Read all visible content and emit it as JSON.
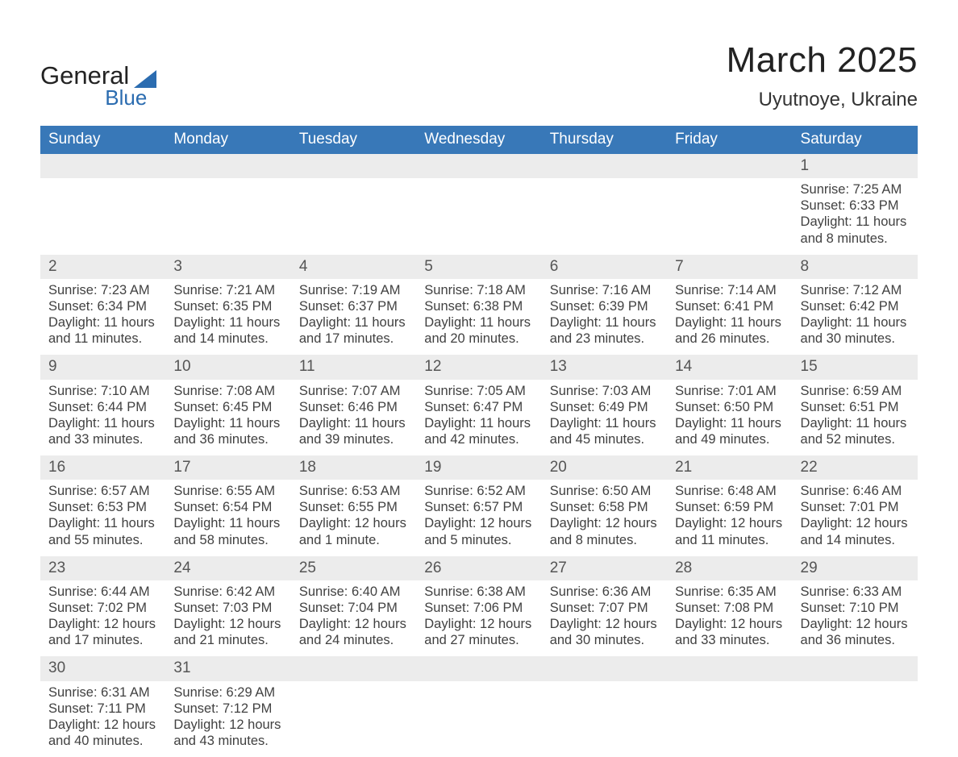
{
  "brand": {
    "line1": "General",
    "line2": "Blue"
  },
  "header": {
    "title": "March 2025",
    "location": "Uyutnoye, Ukraine"
  },
  "colors": {
    "header_bg": "#3878b8",
    "header_text": "#ffffff",
    "row_divider": "#3878b8",
    "daynum_bg": "#ececec",
    "body_text": "#414141",
    "page_bg": "#ffffff",
    "logo_accent": "#2b6cb0"
  },
  "columns": [
    "Sunday",
    "Monday",
    "Tuesday",
    "Wednesday",
    "Thursday",
    "Friday",
    "Saturday"
  ],
  "weeks": [
    [
      null,
      null,
      null,
      null,
      null,
      null,
      {
        "n": "1",
        "sunrise": "Sunrise: 7:25 AM",
        "sunset": "Sunset: 6:33 PM",
        "day1": "Daylight: 11 hours",
        "day2": "and 8 minutes."
      }
    ],
    [
      {
        "n": "2",
        "sunrise": "Sunrise: 7:23 AM",
        "sunset": "Sunset: 6:34 PM",
        "day1": "Daylight: 11 hours",
        "day2": "and 11 minutes."
      },
      {
        "n": "3",
        "sunrise": "Sunrise: 7:21 AM",
        "sunset": "Sunset: 6:35 PM",
        "day1": "Daylight: 11 hours",
        "day2": "and 14 minutes."
      },
      {
        "n": "4",
        "sunrise": "Sunrise: 7:19 AM",
        "sunset": "Sunset: 6:37 PM",
        "day1": "Daylight: 11 hours",
        "day2": "and 17 minutes."
      },
      {
        "n": "5",
        "sunrise": "Sunrise: 7:18 AM",
        "sunset": "Sunset: 6:38 PM",
        "day1": "Daylight: 11 hours",
        "day2": "and 20 minutes."
      },
      {
        "n": "6",
        "sunrise": "Sunrise: 7:16 AM",
        "sunset": "Sunset: 6:39 PM",
        "day1": "Daylight: 11 hours",
        "day2": "and 23 minutes."
      },
      {
        "n": "7",
        "sunrise": "Sunrise: 7:14 AM",
        "sunset": "Sunset: 6:41 PM",
        "day1": "Daylight: 11 hours",
        "day2": "and 26 minutes."
      },
      {
        "n": "8",
        "sunrise": "Sunrise: 7:12 AM",
        "sunset": "Sunset: 6:42 PM",
        "day1": "Daylight: 11 hours",
        "day2": "and 30 minutes."
      }
    ],
    [
      {
        "n": "9",
        "sunrise": "Sunrise: 7:10 AM",
        "sunset": "Sunset: 6:44 PM",
        "day1": "Daylight: 11 hours",
        "day2": "and 33 minutes."
      },
      {
        "n": "10",
        "sunrise": "Sunrise: 7:08 AM",
        "sunset": "Sunset: 6:45 PM",
        "day1": "Daylight: 11 hours",
        "day2": "and 36 minutes."
      },
      {
        "n": "11",
        "sunrise": "Sunrise: 7:07 AM",
        "sunset": "Sunset: 6:46 PM",
        "day1": "Daylight: 11 hours",
        "day2": "and 39 minutes."
      },
      {
        "n": "12",
        "sunrise": "Sunrise: 7:05 AM",
        "sunset": "Sunset: 6:47 PM",
        "day1": "Daylight: 11 hours",
        "day2": "and 42 minutes."
      },
      {
        "n": "13",
        "sunrise": "Sunrise: 7:03 AM",
        "sunset": "Sunset: 6:49 PM",
        "day1": "Daylight: 11 hours",
        "day2": "and 45 minutes."
      },
      {
        "n": "14",
        "sunrise": "Sunrise: 7:01 AM",
        "sunset": "Sunset: 6:50 PM",
        "day1": "Daylight: 11 hours",
        "day2": "and 49 minutes."
      },
      {
        "n": "15",
        "sunrise": "Sunrise: 6:59 AM",
        "sunset": "Sunset: 6:51 PM",
        "day1": "Daylight: 11 hours",
        "day2": "and 52 minutes."
      }
    ],
    [
      {
        "n": "16",
        "sunrise": "Sunrise: 6:57 AM",
        "sunset": "Sunset: 6:53 PM",
        "day1": "Daylight: 11 hours",
        "day2": "and 55 minutes."
      },
      {
        "n": "17",
        "sunrise": "Sunrise: 6:55 AM",
        "sunset": "Sunset: 6:54 PM",
        "day1": "Daylight: 11 hours",
        "day2": "and 58 minutes."
      },
      {
        "n": "18",
        "sunrise": "Sunrise: 6:53 AM",
        "sunset": "Sunset: 6:55 PM",
        "day1": "Daylight: 12 hours",
        "day2": "and 1 minute."
      },
      {
        "n": "19",
        "sunrise": "Sunrise: 6:52 AM",
        "sunset": "Sunset: 6:57 PM",
        "day1": "Daylight: 12 hours",
        "day2": "and 5 minutes."
      },
      {
        "n": "20",
        "sunrise": "Sunrise: 6:50 AM",
        "sunset": "Sunset: 6:58 PM",
        "day1": "Daylight: 12 hours",
        "day2": "and 8 minutes."
      },
      {
        "n": "21",
        "sunrise": "Sunrise: 6:48 AM",
        "sunset": "Sunset: 6:59 PM",
        "day1": "Daylight: 12 hours",
        "day2": "and 11 minutes."
      },
      {
        "n": "22",
        "sunrise": "Sunrise: 6:46 AM",
        "sunset": "Sunset: 7:01 PM",
        "day1": "Daylight: 12 hours",
        "day2": "and 14 minutes."
      }
    ],
    [
      {
        "n": "23",
        "sunrise": "Sunrise: 6:44 AM",
        "sunset": "Sunset: 7:02 PM",
        "day1": "Daylight: 12 hours",
        "day2": "and 17 minutes."
      },
      {
        "n": "24",
        "sunrise": "Sunrise: 6:42 AM",
        "sunset": "Sunset: 7:03 PM",
        "day1": "Daylight: 12 hours",
        "day2": "and 21 minutes."
      },
      {
        "n": "25",
        "sunrise": "Sunrise: 6:40 AM",
        "sunset": "Sunset: 7:04 PM",
        "day1": "Daylight: 12 hours",
        "day2": "and 24 minutes."
      },
      {
        "n": "26",
        "sunrise": "Sunrise: 6:38 AM",
        "sunset": "Sunset: 7:06 PM",
        "day1": "Daylight: 12 hours",
        "day2": "and 27 minutes."
      },
      {
        "n": "27",
        "sunrise": "Sunrise: 6:36 AM",
        "sunset": "Sunset: 7:07 PM",
        "day1": "Daylight: 12 hours",
        "day2": "and 30 minutes."
      },
      {
        "n": "28",
        "sunrise": "Sunrise: 6:35 AM",
        "sunset": "Sunset: 7:08 PM",
        "day1": "Daylight: 12 hours",
        "day2": "and 33 minutes."
      },
      {
        "n": "29",
        "sunrise": "Sunrise: 6:33 AM",
        "sunset": "Sunset: 7:10 PM",
        "day1": "Daylight: 12 hours",
        "day2": "and 36 minutes."
      }
    ],
    [
      {
        "n": "30",
        "sunrise": "Sunrise: 6:31 AM",
        "sunset": "Sunset: 7:11 PM",
        "day1": "Daylight: 12 hours",
        "day2": "and 40 minutes."
      },
      {
        "n": "31",
        "sunrise": "Sunrise: 6:29 AM",
        "sunset": "Sunset: 7:12 PM",
        "day1": "Daylight: 12 hours",
        "day2": "and 43 minutes."
      },
      null,
      null,
      null,
      null,
      null
    ]
  ]
}
